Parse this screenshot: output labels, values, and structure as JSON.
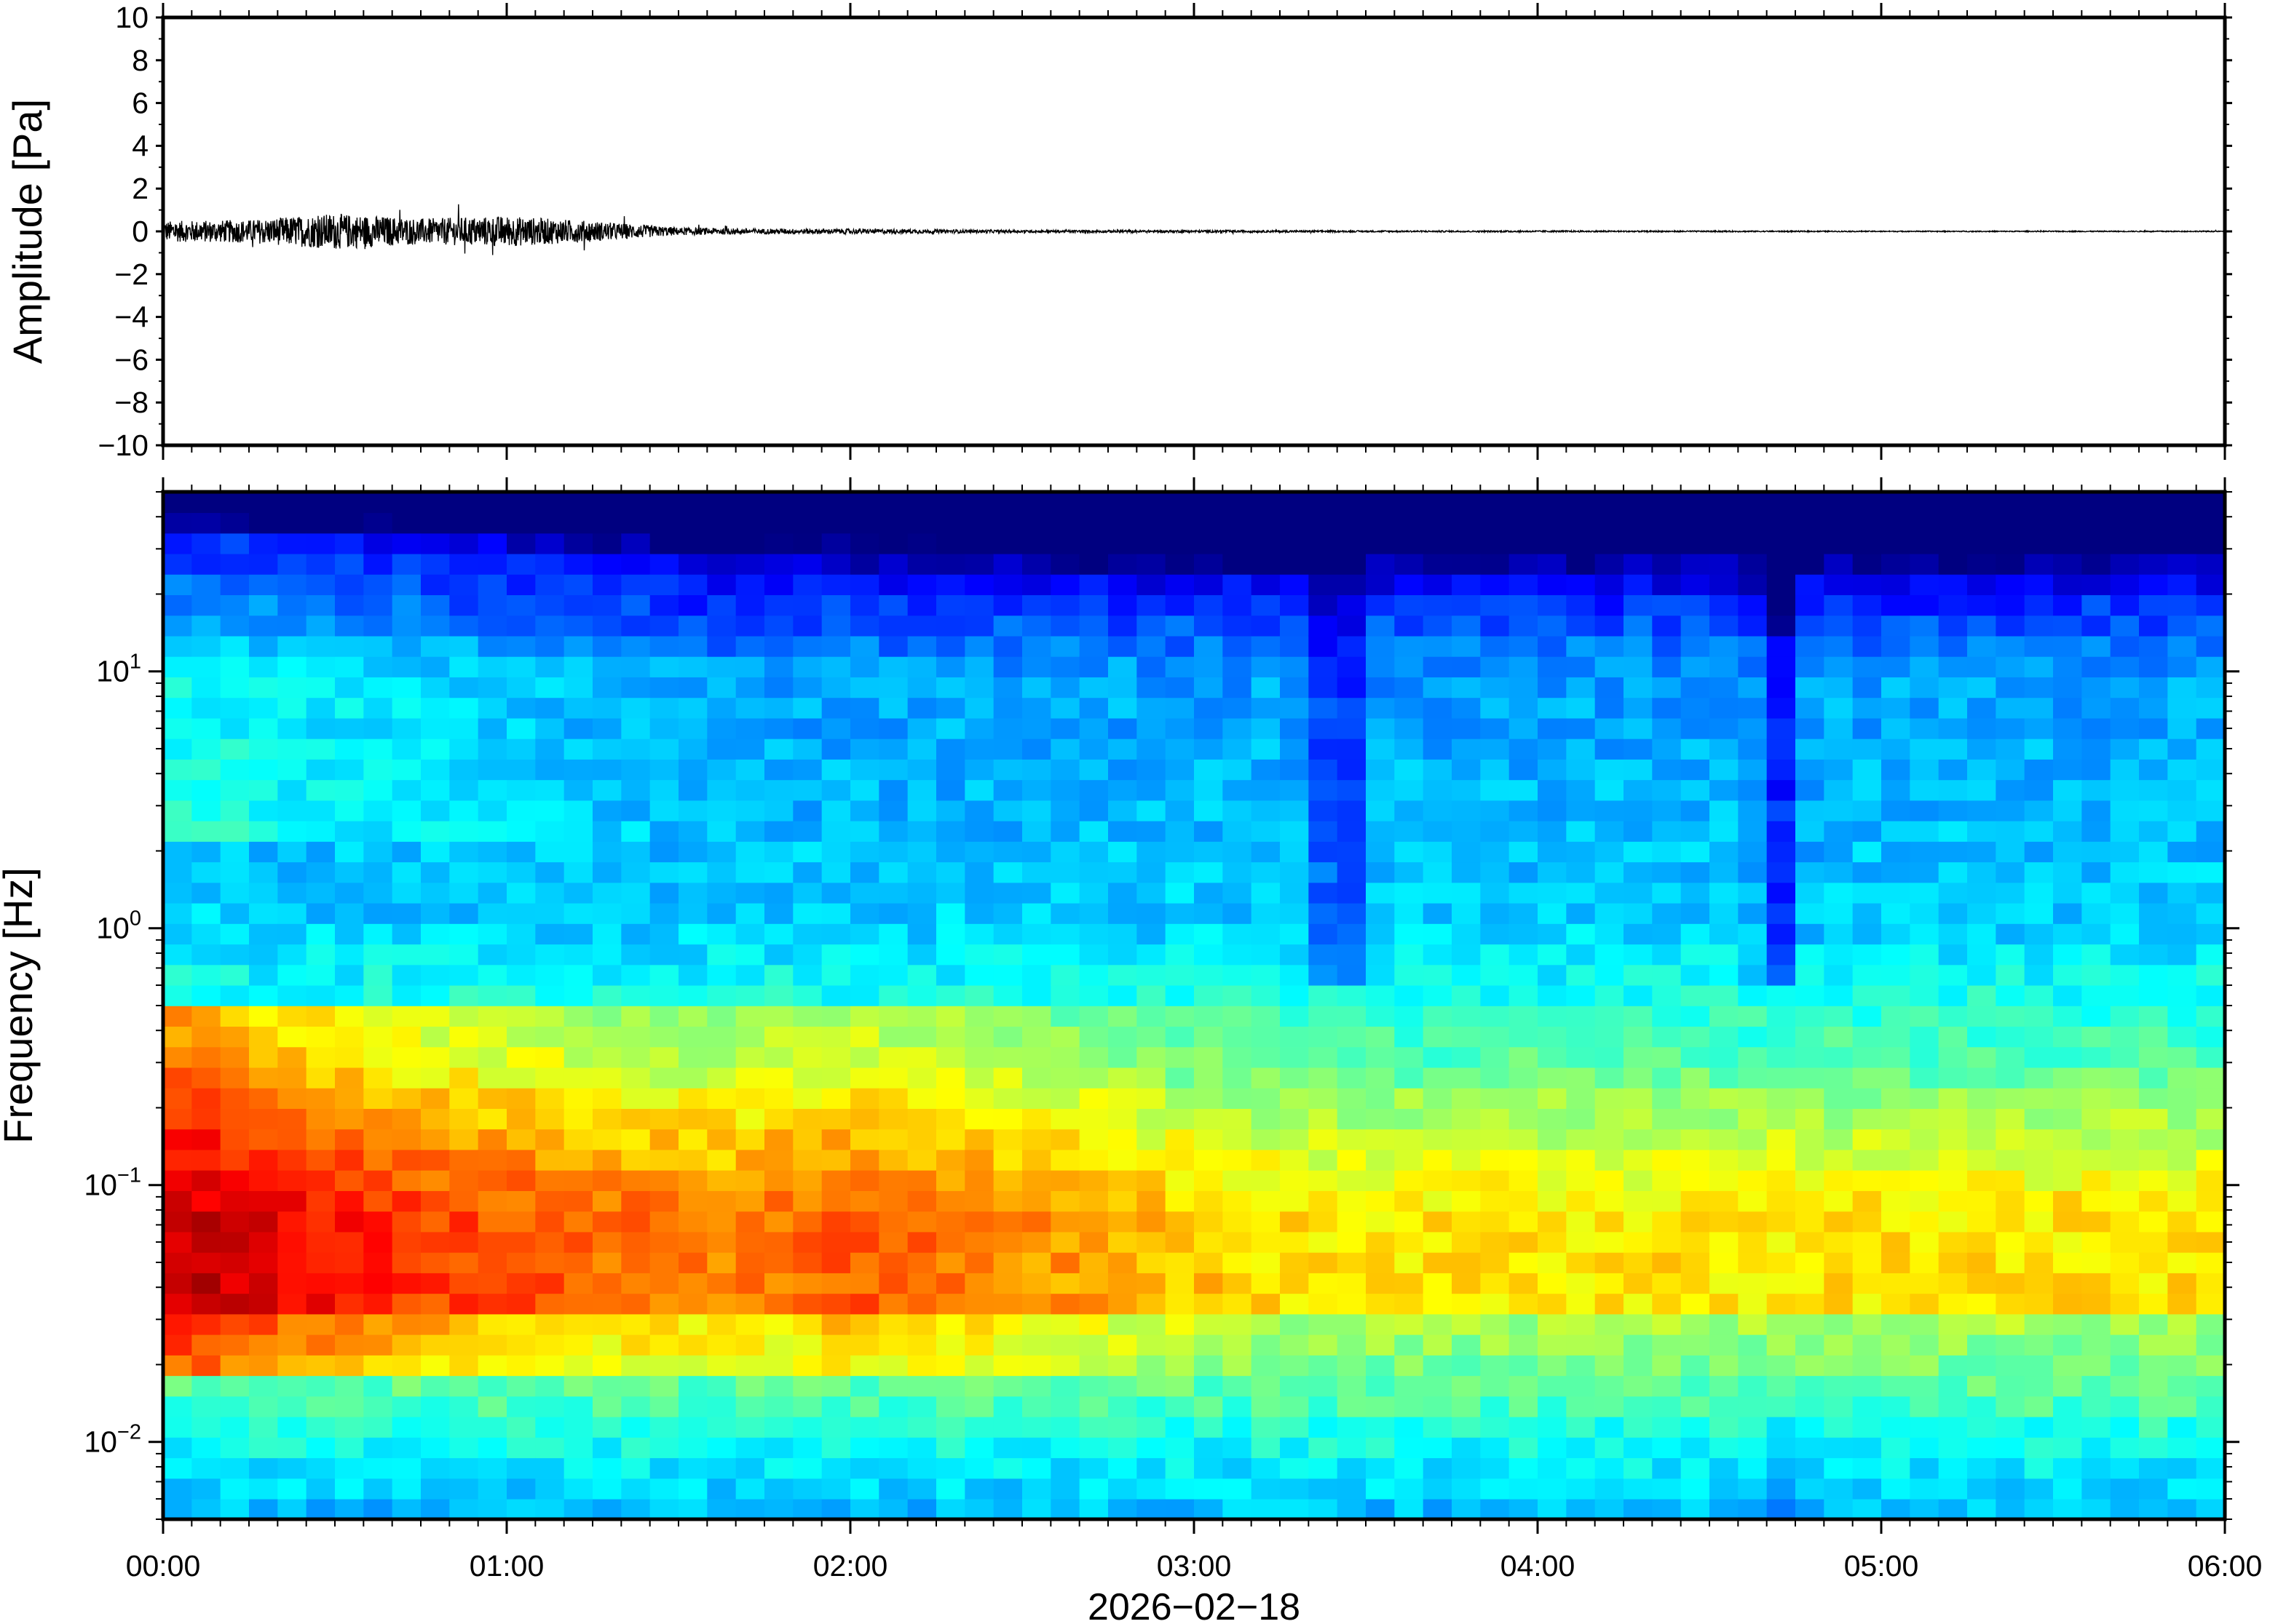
{
  "chart_data": [
    {
      "type": "line",
      "title": "",
      "ylabel": "Amplitude [Pa]",
      "xlabel": "",
      "ylim": [
        -10,
        10
      ],
      "yticks": [
        10,
        8,
        6,
        4,
        2,
        0,
        -2,
        -4,
        -6,
        -8,
        -10
      ],
      "ytick_labels": [
        "10",
        "8",
        "6",
        "4",
        "2",
        "0",
        "−2",
        "−4",
        "−6",
        "−8",
        "−10"
      ],
      "grid": false,
      "series": [
        {
          "x_hours": [
            0.0,
            0.25,
            0.5,
            0.75,
            1.0,
            1.25,
            1.5,
            1.75,
            2.0,
            2.5,
            3.0,
            3.5,
            4.0,
            5.0,
            6.0
          ],
          "envelope_pa": [
            0.4,
            0.45,
            0.7,
            0.5,
            0.6,
            0.4,
            0.15,
            0.1,
            0.1,
            0.05,
            0.05,
            0.03,
            0.03,
            0.02,
            0.02
          ],
          "color": "#000000"
        }
      ]
    },
    {
      "type": "heatmap",
      "title": "",
      "ylabel": "Frequency [Hz]",
      "xlabel": "2026−02−18",
      "y_scale": "log",
      "ylim_hz": [
        0.005,
        50
      ],
      "yticks": [
        {
          "value": 10,
          "base": "10",
          "exp": "1"
        },
        {
          "value": 1,
          "base": "10",
          "exp": "0"
        },
        {
          "value": 0.1,
          "base": "10",
          "exp": "−1"
        },
        {
          "value": 0.01,
          "base": "10",
          "exp": "−2"
        }
      ],
      "x_range_hours": [
        0,
        6
      ],
      "xticks": [
        "00:00",
        "01:00",
        "02:00",
        "03:00",
        "04:00",
        "05:00",
        "06:00"
      ],
      "colormap": "jet",
      "grid": false,
      "time_bins": 72,
      "log_freq_bins": 50,
      "notes_visible": "high power below 0.2 Hz during 00:00-01:30; low power above ~10 Hz; dips near 03:25 and 04:42"
    }
  ]
}
